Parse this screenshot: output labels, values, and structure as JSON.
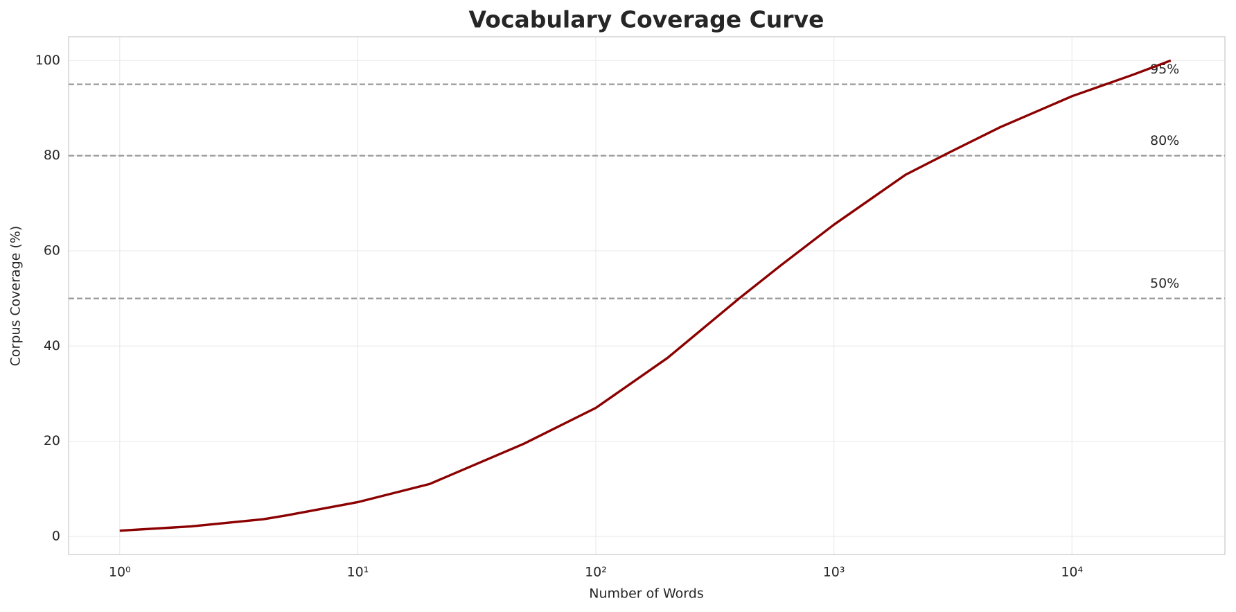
{
  "chart_data": {
    "type": "line",
    "title": "Vocabulary Coverage Curve",
    "xlabel": "Number of Words",
    "ylabel": "Corpus Coverage (%)",
    "x": [
      1,
      2,
      4,
      5,
      10,
      20,
      50,
      100,
      200,
      400,
      600,
      1000,
      2000,
      3000,
      5000,
      10000,
      18000,
      26000
    ],
    "values": [
      1.2,
      2.1,
      3.6,
      4.4,
      7.2,
      11,
      19.5,
      27,
      37.5,
      50,
      57,
      65.5,
      76,
      80.5,
      86,
      92.5,
      97,
      100
    ],
    "color": "#8b0000",
    "xscale": "log",
    "xlim": [
      0.61,
      43900
    ],
    "ylim": [
      -3.8,
      105
    ],
    "xticks": [
      {
        "value": 1,
        "label": "10⁰"
      },
      {
        "value": 10,
        "label": "10¹"
      },
      {
        "value": 100,
        "label": "10²"
      },
      {
        "value": 1000,
        "label": "10³"
      },
      {
        "value": 10000,
        "label": "10⁴"
      }
    ],
    "yticks": [
      0,
      20,
      40,
      60,
      80,
      100
    ],
    "grid": true,
    "hlines": [
      {
        "value": 95,
        "label": "95%"
      },
      {
        "value": 80,
        "label": "80%"
      },
      {
        "value": 50,
        "label": "50%"
      }
    ]
  }
}
